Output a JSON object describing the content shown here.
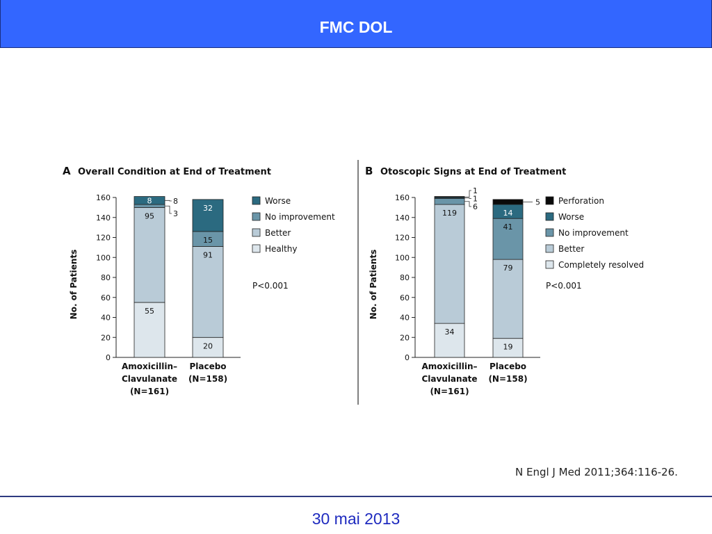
{
  "header": {
    "title": "FMC DOL"
  },
  "footer": {
    "date": "30 mai 2013"
  },
  "citation": "N Engl J Med 2011;364:116-26.",
  "p_value_label": "P<0.001",
  "colors": {
    "header_bg": "#3366ff",
    "footer_text": "#1f2bbf",
    "perforation": "#0a0a0a",
    "worse": "#2b6a80",
    "no_improvement": "#6a95a8",
    "better": "#b9cbd7",
    "healthy": "#dde6ec"
  },
  "chart_data": [
    {
      "type": "bar",
      "stacked": true,
      "panel_letter": "A",
      "title": "Overall Condition at End of Treatment",
      "ylabel": "No. of Patients",
      "ylim": [
        0,
        160
      ],
      "yticks": [
        "0",
        "20",
        "40",
        "60",
        "80",
        "100",
        "120",
        "140",
        "160"
      ],
      "categories": [
        [
          "Amoxicillin–",
          "Clavulanate",
          "(N=161)"
        ],
        [
          "Placebo",
          "(N=158)"
        ]
      ],
      "series": [
        {
          "name": "Healthy",
          "color": "#dde6ec",
          "values": [
            55,
            20
          ],
          "labels": [
            "55",
            "20"
          ]
        },
        {
          "name": "Better",
          "color": "#b9cbd7",
          "values": [
            95,
            91
          ],
          "labels": [
            "95",
            "91"
          ]
        },
        {
          "name": "No improvement",
          "color": "#6a95a8",
          "values": [
            3,
            15
          ],
          "labels": [
            "3",
            "15"
          ]
        },
        {
          "name": "Worse",
          "color": "#2b6a80",
          "values": [
            8,
            32
          ],
          "labels": [
            "8",
            "32"
          ]
        }
      ],
      "legend": [
        "Worse",
        "No improvement",
        "Better",
        "Healthy"
      ]
    },
    {
      "type": "bar",
      "stacked": true,
      "panel_letter": "B",
      "title": "Otoscopic Signs at End of Treatment",
      "ylabel": "No. of Patients",
      "ylim": [
        0,
        160
      ],
      "yticks": [
        "0",
        "20",
        "40",
        "60",
        "80",
        "100",
        "120",
        "140",
        "160"
      ],
      "categories": [
        [
          "Amoxicillin–",
          "Clavulanate",
          "(N=161)"
        ],
        [
          "Placebo",
          "(N=158)"
        ]
      ],
      "series": [
        {
          "name": "Completely resolved",
          "color": "#dde6ec",
          "values": [
            34,
            19
          ],
          "labels": [
            "34",
            "19"
          ]
        },
        {
          "name": "Better",
          "color": "#b9cbd7",
          "values": [
            119,
            79
          ],
          "labels": [
            "119",
            "79"
          ]
        },
        {
          "name": "No improvement",
          "color": "#6a95a8",
          "values": [
            6,
            41
          ],
          "labels": [
            "6",
            "41"
          ]
        },
        {
          "name": "Worse",
          "color": "#2b6a80",
          "values": [
            1,
            14
          ],
          "labels": [
            "1",
            "14"
          ]
        },
        {
          "name": "Perforation",
          "color": "#0a0a0a",
          "values": [
            1,
            5
          ],
          "labels": [
            "1",
            "5"
          ]
        }
      ],
      "legend": [
        "Perforation",
        "Worse",
        "No improvement",
        "Better",
        "Completely resolved"
      ]
    }
  ]
}
